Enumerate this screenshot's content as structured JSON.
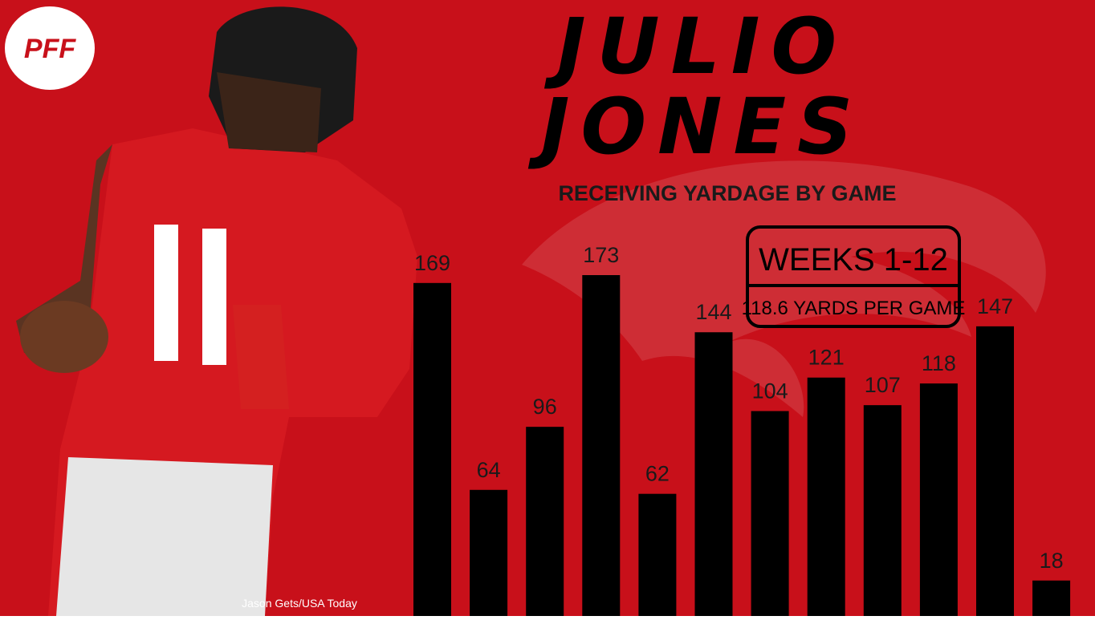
{
  "chart_data": {
    "type": "bar",
    "logo": "PFF",
    "title": "JULIO JONES",
    "subtitle": "RECEIVING YARDAGE BY GAME",
    "annotation": {
      "title": "WEEKS 1-12",
      "text": "118.6 YARDS PER GAME"
    },
    "source": "Jason Gets/USA Today",
    "values": [
      169,
      64,
      96,
      173,
      62,
      144,
      104,
      121,
      107,
      118,
      147,
      18
    ],
    "color": "#000000"
  }
}
